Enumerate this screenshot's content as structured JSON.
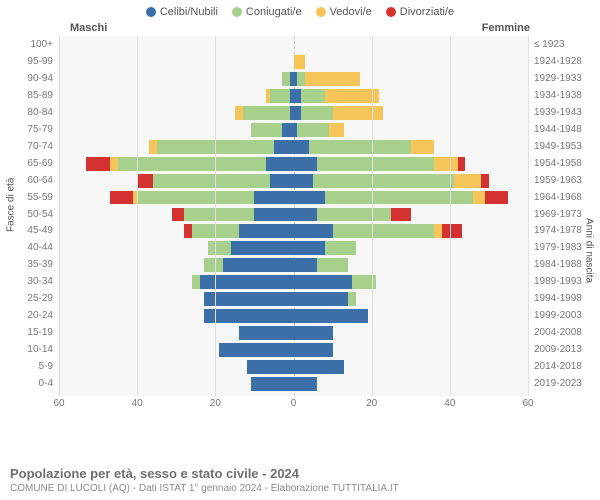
{
  "legend": [
    {
      "label": "Celibi/Nubili",
      "color": "#3c6fa8"
    },
    {
      "label": "Coniugati/e",
      "color": "#a8d08d"
    },
    {
      "label": "Vedovi/e",
      "color": "#f5c55a"
    },
    {
      "label": "Divorziati/e",
      "color": "#d43131"
    }
  ],
  "header": {
    "male": "Maschi",
    "female": "Femmine"
  },
  "axis_left_title": "Fasce di età",
  "axis_right_title": "Anni di nascita",
  "xticks": [
    60,
    40,
    20,
    0,
    20,
    40,
    60
  ],
  "xmax": 60,
  "footer_title": "Popolazione per età, sesso e stato civile - 2024",
  "footer_sub": "COMUNE DI LUCOLI (AQ) - Dati ISTAT 1° gennaio 2024 - Elaborazione TUTTITALIA.IT",
  "colors": {
    "bg": "#ffffff",
    "plot_bg": "#f7f7f7",
    "grid": "#e0e0e0",
    "center": "#c9c9c9",
    "text": "#777"
  },
  "rows": [
    {
      "age": "100+",
      "birth": "≤ 1923",
      "m": {
        "single": 0,
        "married": 0,
        "widowed": 0,
        "divorced": 0
      },
      "f": {
        "single": 0,
        "married": 0,
        "widowed": 0,
        "divorced": 0
      }
    },
    {
      "age": "95-99",
      "birth": "1924-1928",
      "m": {
        "single": 0,
        "married": 0,
        "widowed": 0,
        "divorced": 0
      },
      "f": {
        "single": 0,
        "married": 0,
        "widowed": 3,
        "divorced": 0
      }
    },
    {
      "age": "90-94",
      "birth": "1929-1933",
      "m": {
        "single": 1,
        "married": 2,
        "widowed": 0,
        "divorced": 0
      },
      "f": {
        "single": 1,
        "married": 2,
        "widowed": 14,
        "divorced": 0
      }
    },
    {
      "age": "85-89",
      "birth": "1934-1938",
      "m": {
        "single": 1,
        "married": 5,
        "widowed": 1,
        "divorced": 0
      },
      "f": {
        "single": 2,
        "married": 6,
        "widowed": 14,
        "divorced": 0
      }
    },
    {
      "age": "80-84",
      "birth": "1939-1943",
      "m": {
        "single": 1,
        "married": 12,
        "widowed": 2,
        "divorced": 0
      },
      "f": {
        "single": 2,
        "married": 8,
        "widowed": 13,
        "divorced": 0
      }
    },
    {
      "age": "75-79",
      "birth": "1944-1948",
      "m": {
        "single": 3,
        "married": 8,
        "widowed": 0,
        "divorced": 0
      },
      "f": {
        "single": 1,
        "married": 8,
        "widowed": 4,
        "divorced": 0
      }
    },
    {
      "age": "70-74",
      "birth": "1949-1953",
      "m": {
        "single": 5,
        "married": 30,
        "widowed": 2,
        "divorced": 0
      },
      "f": {
        "single": 4,
        "married": 26,
        "widowed": 6,
        "divorced": 0
      }
    },
    {
      "age": "65-69",
      "birth": "1954-1958",
      "m": {
        "single": 7,
        "married": 38,
        "widowed": 2,
        "divorced": 6
      },
      "f": {
        "single": 6,
        "married": 30,
        "widowed": 6,
        "divorced": 2
      }
    },
    {
      "age": "60-64",
      "birth": "1959-1963",
      "m": {
        "single": 6,
        "married": 30,
        "widowed": 0,
        "divorced": 4
      },
      "f": {
        "single": 5,
        "married": 36,
        "widowed": 7,
        "divorced": 2
      }
    },
    {
      "age": "55-59",
      "birth": "1964-1968",
      "m": {
        "single": 10,
        "married": 30,
        "widowed": 1,
        "divorced": 6
      },
      "f": {
        "single": 8,
        "married": 38,
        "widowed": 3,
        "divorced": 6
      }
    },
    {
      "age": "50-54",
      "birth": "1969-1973",
      "m": {
        "single": 10,
        "married": 18,
        "widowed": 0,
        "divorced": 3
      },
      "f": {
        "single": 6,
        "married": 19,
        "widowed": 0,
        "divorced": 5
      }
    },
    {
      "age": "45-49",
      "birth": "1974-1978",
      "m": {
        "single": 14,
        "married": 12,
        "widowed": 0,
        "divorced": 2
      },
      "f": {
        "single": 10,
        "married": 26,
        "widowed": 2,
        "divorced": 5
      }
    },
    {
      "age": "40-44",
      "birth": "1979-1983",
      "m": {
        "single": 16,
        "married": 6,
        "widowed": 0,
        "divorced": 0
      },
      "f": {
        "single": 8,
        "married": 8,
        "widowed": 0,
        "divorced": 0
      }
    },
    {
      "age": "35-39",
      "birth": "1984-1988",
      "m": {
        "single": 18,
        "married": 5,
        "widowed": 0,
        "divorced": 0
      },
      "f": {
        "single": 6,
        "married": 8,
        "widowed": 0,
        "divorced": 0
      }
    },
    {
      "age": "30-34",
      "birth": "1989-1993",
      "m": {
        "single": 24,
        "married": 2,
        "widowed": 0,
        "divorced": 0
      },
      "f": {
        "single": 15,
        "married": 6,
        "widowed": 0,
        "divorced": 0
      }
    },
    {
      "age": "25-29",
      "birth": "1994-1998",
      "m": {
        "single": 23,
        "married": 0,
        "widowed": 0,
        "divorced": 0
      },
      "f": {
        "single": 14,
        "married": 2,
        "widowed": 0,
        "divorced": 0
      }
    },
    {
      "age": "20-24",
      "birth": "1999-2003",
      "m": {
        "single": 23,
        "married": 0,
        "widowed": 0,
        "divorced": 0
      },
      "f": {
        "single": 19,
        "married": 0,
        "widowed": 0,
        "divorced": 0
      }
    },
    {
      "age": "15-19",
      "birth": "2004-2008",
      "m": {
        "single": 14,
        "married": 0,
        "widowed": 0,
        "divorced": 0
      },
      "f": {
        "single": 10,
        "married": 0,
        "widowed": 0,
        "divorced": 0
      }
    },
    {
      "age": "10-14",
      "birth": "2009-2013",
      "m": {
        "single": 19,
        "married": 0,
        "widowed": 0,
        "divorced": 0
      },
      "f": {
        "single": 10,
        "married": 0,
        "widowed": 0,
        "divorced": 0
      }
    },
    {
      "age": "5-9",
      "birth": "2014-2018",
      "m": {
        "single": 12,
        "married": 0,
        "widowed": 0,
        "divorced": 0
      },
      "f": {
        "single": 13,
        "married": 0,
        "widowed": 0,
        "divorced": 0
      }
    },
    {
      "age": "0-4",
      "birth": "2019-2023",
      "m": {
        "single": 11,
        "married": 0,
        "widowed": 0,
        "divorced": 0
      },
      "f": {
        "single": 6,
        "married": 0,
        "widowed": 0,
        "divorced": 0
      }
    }
  ]
}
